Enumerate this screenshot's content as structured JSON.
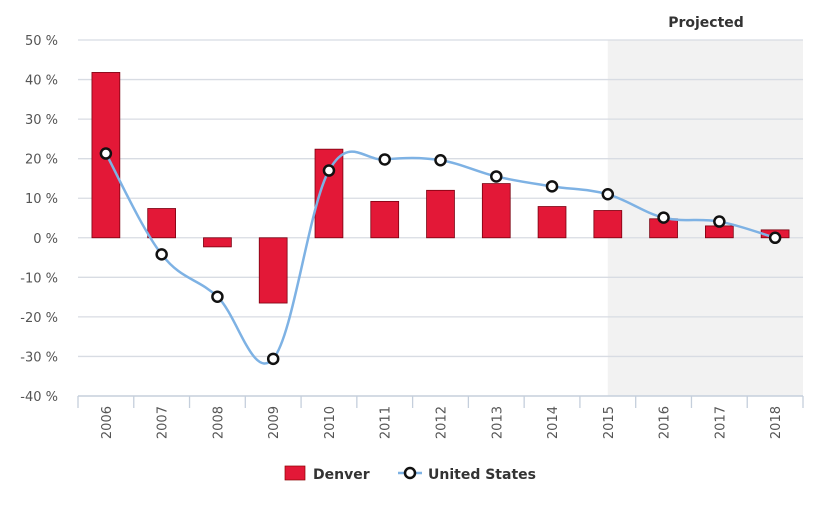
{
  "chart_data": {
    "type": "bar+line",
    "categories": [
      "2006",
      "2007",
      "2008",
      "2009",
      "2010",
      "2011",
      "2012",
      "2013",
      "2014",
      "2015",
      "2016",
      "2017",
      "2018"
    ],
    "series": [
      {
        "name": "Denver",
        "type": "bar",
        "color": "#e31837",
        "values": [
          41.8,
          7.4,
          -2.3,
          -16.5,
          22.4,
          9.2,
          12.0,
          13.7,
          7.9,
          6.9,
          4.8,
          3.0,
          2.0
        ]
      },
      {
        "name": "United States",
        "type": "line",
        "color": "#7eb2e4",
        "values": [
          21.3,
          -4.2,
          -14.9,
          -30.6,
          17.0,
          19.8,
          19.6,
          15.5,
          13.0,
          11.0,
          5.1,
          4.1,
          0.0
        ]
      }
    ],
    "yticks": [
      "50 %",
      "40 %",
      "30 %",
      "20 %",
      "10 %",
      "0 %",
      "-10 %",
      "-20 %",
      "-30 %",
      "-40 %"
    ],
    "ylim": [
      -40,
      50
    ],
    "projected_label": "Projected",
    "projected_from": "2015",
    "grid": true,
    "legend": "bottom"
  }
}
